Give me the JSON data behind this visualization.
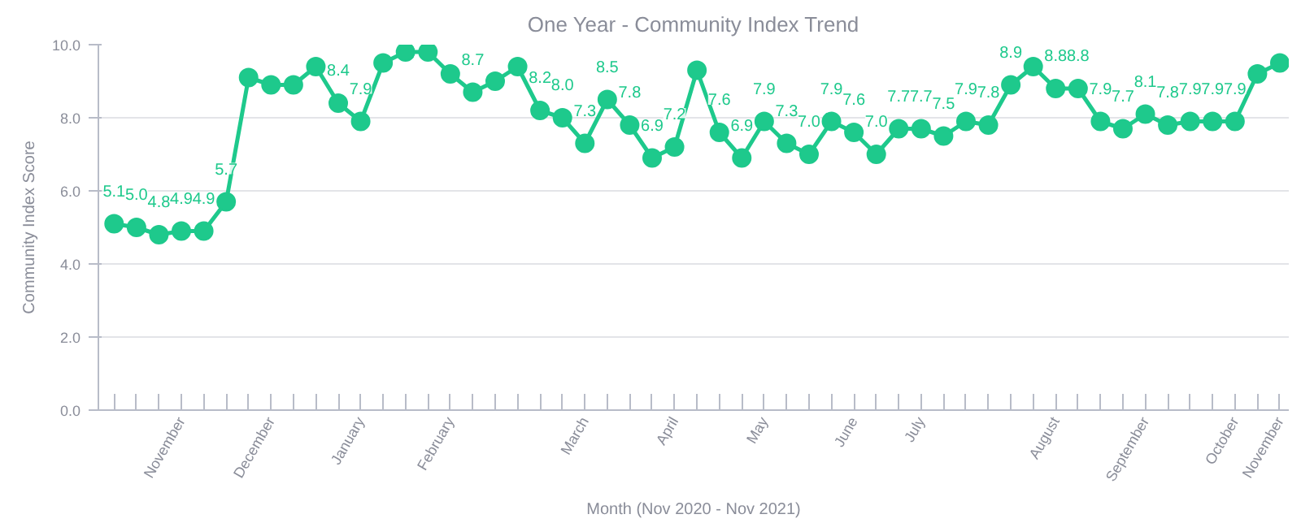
{
  "chart_data": {
    "type": "line",
    "title": "One Year - Community Index Trend",
    "xlabel": "Month (Nov 2020 - Nov 2021)",
    "ylabel": "Community Index Score",
    "categories": [
      null,
      null,
      null,
      "November",
      null,
      null,
      null,
      "December",
      null,
      null,
      null,
      "January",
      null,
      null,
      null,
      "February",
      null,
      null,
      null,
      null,
      null,
      "March",
      null,
      null,
      null,
      "April",
      null,
      null,
      null,
      "May",
      null,
      null,
      null,
      "June",
      null,
      null,
      "July",
      null,
      null,
      null,
      null,
      null,
      "August",
      null,
      null,
      null,
      "September",
      null,
      null,
      null,
      "October",
      null,
      "November"
    ],
    "series": [
      {
        "color": "#1ec98c",
        "values": [
          5.1,
          5.0,
          4.8,
          4.9,
          4.9,
          5.7,
          9.1,
          8.9,
          8.9,
          9.4,
          8.4,
          7.9,
          9.5,
          9.8,
          9.8,
          9.2,
          8.7,
          9.0,
          9.4,
          8.2,
          8.0,
          7.3,
          8.5,
          7.8,
          6.9,
          7.2,
          9.3,
          7.6,
          6.9,
          7.9,
          7.3,
          7.0,
          7.9,
          7.6,
          7.0,
          7.7,
          7.7,
          7.5,
          7.9,
          7.8,
          8.9,
          9.4,
          8.8,
          8.8,
          7.9,
          7.7,
          8.1,
          7.8,
          7.9,
          7.9,
          7.9,
          9.2,
          9.5
        ],
        "value_labels": [
          "5.1",
          "5.0",
          "4.8",
          "4.9",
          "4.9",
          "5.7",
          null,
          null,
          null,
          null,
          "8.4",
          "7.9",
          null,
          null,
          null,
          null,
          "8.7",
          null,
          null,
          "8.2",
          "8.0",
          "7.3",
          "8.5",
          "7.8",
          "6.9",
          "7.2",
          null,
          "7.6",
          "6.9",
          "7.9",
          "7.3",
          "7.0",
          "7.9",
          "7.6",
          "7.0",
          "7.7",
          "7.7",
          "7.5",
          "7.9",
          "7.8",
          "8.9",
          null,
          "8.8",
          "8.8",
          "7.9",
          "7.7",
          "8.1",
          "7.8",
          "7.9",
          "7.9",
          "7.9",
          null,
          null
        ]
      }
    ],
    "ylim": [
      0,
      10
    ],
    "yticks": [
      {
        "value": 0,
        "label": "0.0"
      },
      {
        "value": 2,
        "label": "2.0"
      },
      {
        "value": 4,
        "label": "4.0"
      },
      {
        "value": 6,
        "label": "6.0"
      },
      {
        "value": 8,
        "label": "8.0"
      },
      {
        "value": 10,
        "label": "10.0"
      }
    ],
    "grid": "y",
    "marker": "circle",
    "line_style": "solid"
  }
}
